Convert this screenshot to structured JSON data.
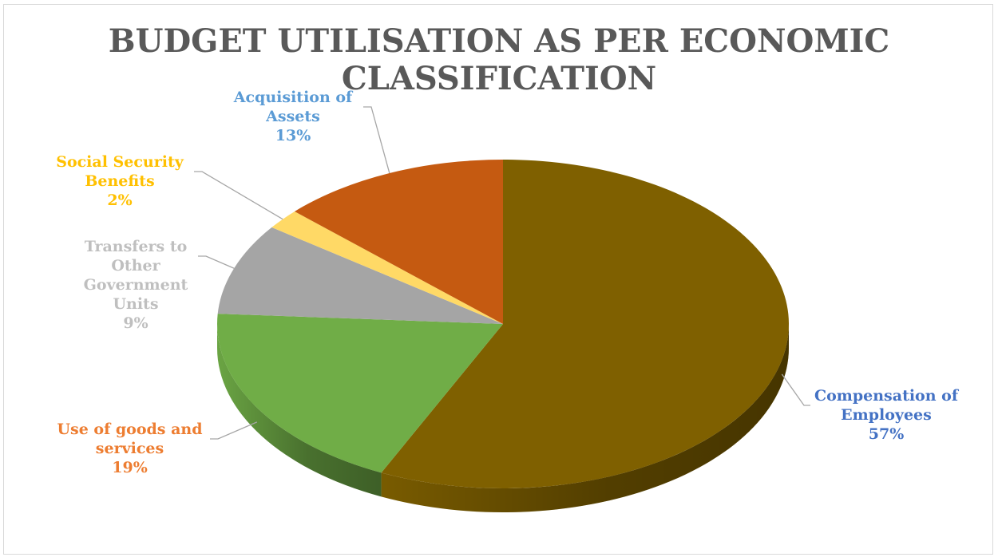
{
  "chart_data": {
    "type": "pie",
    "title_lines": [
      "BUDGET UTILISATION AS PER ECONOMIC",
      "CLASSIFICATION"
    ],
    "slices": [
      {
        "name_lines": [
          "Compensation of",
          "Employees"
        ],
        "value": 57,
        "label": "57%",
        "color": "#7f6000",
        "label_color": "#4472c4"
      },
      {
        "name_lines": [
          "Use of goods and",
          "services"
        ],
        "value": 19,
        "label": "19%",
        "color": "#70ad47",
        "label_color": "#ed7d31"
      },
      {
        "name_lines": [
          "Transfers to",
          "Other",
          "Government",
          "Units"
        ],
        "value": 9,
        "label": "9%",
        "color": "#a5a5a5",
        "label_color": "#bfbfbf"
      },
      {
        "name_lines": [
          "Social Security",
          "Benefits"
        ],
        "value": 2,
        "label": "2%",
        "color": "#ffd966",
        "label_color": "#ffc000"
      },
      {
        "name_lines": [
          "Acquisition of",
          "Assets"
        ],
        "value": 13,
        "label": "13%",
        "color": "#c55a11",
        "label_color": "#5b9bd5"
      }
    ],
    "start_angle_deg": 0,
    "direction": "clockwise",
    "style": "3d-pie",
    "legend": "none",
    "leader_line_color": "#a6a6a6"
  }
}
